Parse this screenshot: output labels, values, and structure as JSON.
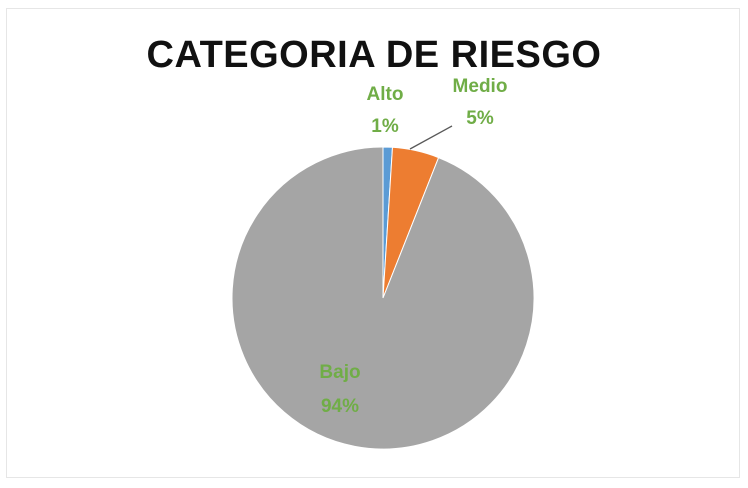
{
  "chart_data": {
    "type": "pie",
    "title": "CATEGORIA  DE RIESGO",
    "slices": [
      {
        "name": "Alto",
        "value": 1,
        "label": "1%",
        "color": "#5b9bd5"
      },
      {
        "name": "Medio",
        "value": 5,
        "label": "5%",
        "color": "#ed7d31"
      },
      {
        "name": "Bajo",
        "value": 94,
        "label": "94%",
        "color": "#a5a5a5"
      }
    ],
    "label_color": "#70ad47",
    "legend": "none"
  }
}
